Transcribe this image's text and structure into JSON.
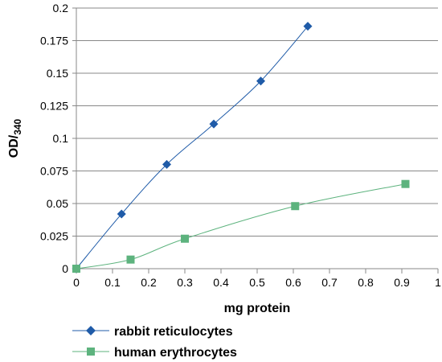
{
  "chart_data": {
    "type": "line",
    "xlabel": "mg protein",
    "ylabel": "OD/",
    "ylabel_sub": "340",
    "xlim": [
      0,
      1
    ],
    "ylim": [
      0,
      0.2
    ],
    "x_ticks": [
      "0",
      "0.1",
      "0.2",
      "0.3",
      "0.4",
      "0.5",
      "0.6",
      "0.7",
      "0.8",
      "0.9",
      "1"
    ],
    "y_ticks": [
      "0",
      "0.025",
      "0.05",
      "0.075",
      "0.1",
      "0.125",
      "0.15",
      "0.175",
      "0.2"
    ],
    "grid": "horizontal",
    "legend_position": "bottom-left",
    "series": [
      {
        "name": "rabbit reticulocytes",
        "color": "#1f5ba8",
        "marker": "diamond",
        "x": [
          0,
          0.125,
          0.25,
          0.38,
          0.51,
          0.64
        ],
        "y": [
          0,
          0.042,
          0.08,
          0.111,
          0.144,
          0.186
        ]
      },
      {
        "name": "human erythrocytes",
        "color": "#5db37e",
        "marker": "square",
        "x": [
          0,
          0.15,
          0.3,
          0.605,
          0.91
        ],
        "y": [
          0,
          0.007,
          0.023,
          0.048,
          0.065
        ]
      }
    ]
  }
}
